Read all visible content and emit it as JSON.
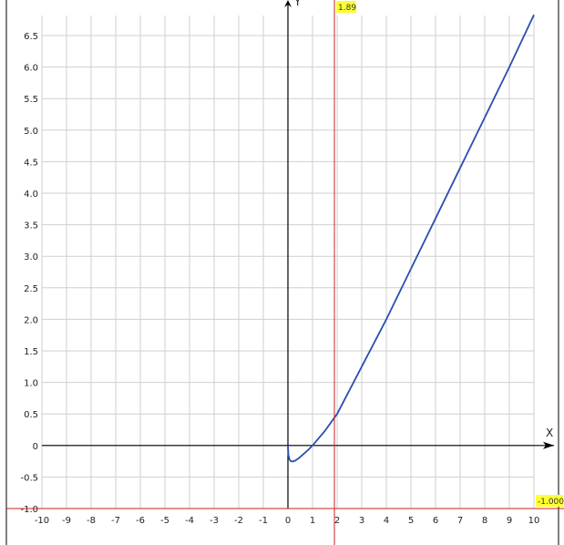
{
  "chart_data": {
    "type": "line",
    "xlabel": "X",
    "ylabel": "Y",
    "xlim": [
      -10,
      10
    ],
    "ylim": [
      -1,
      6.5
    ],
    "grid": true,
    "x_ticks": [
      "-10",
      "-9",
      "-8",
      "-7",
      "-6",
      "-5",
      "-4",
      "-3",
      "-2",
      "-1",
      "0",
      "1",
      "2",
      "3",
      "4",
      "5",
      "6",
      "7",
      "8",
      "9",
      "10"
    ],
    "y_ticks": [
      "-1.0",
      "-0.5",
      "0",
      "0.5",
      "1.0",
      "1.5",
      "2.0",
      "2.5",
      "3.0",
      "3.5",
      "4.0",
      "4.5",
      "5.0",
      "5.5",
      "6.0",
      "6.5"
    ],
    "series": [
      {
        "color": "#2a4db0",
        "x": [
          0,
          0.02,
          0.06,
          0.12,
          0.2,
          0.3,
          0.45,
          0.65,
          0.85,
          1,
          1.5,
          2,
          3,
          4,
          5,
          6,
          7,
          8,
          9,
          10
        ],
        "y": [
          0,
          -0.15,
          -0.22,
          -0.25,
          -0.255,
          -0.24,
          -0.2,
          -0.13,
          -0.06,
          0,
          0.23,
          0.5,
          1.25,
          2.0,
          2.8,
          3.6,
          4.4,
          5.2,
          6.0,
          6.83
        ]
      }
    ],
    "cursor": {
      "color": "#cc2222",
      "x_value": 1.89,
      "x_label": "1.89",
      "y_value": -1.0,
      "y_label": "-1.000",
      "label_bg": "#ffff33"
    }
  }
}
